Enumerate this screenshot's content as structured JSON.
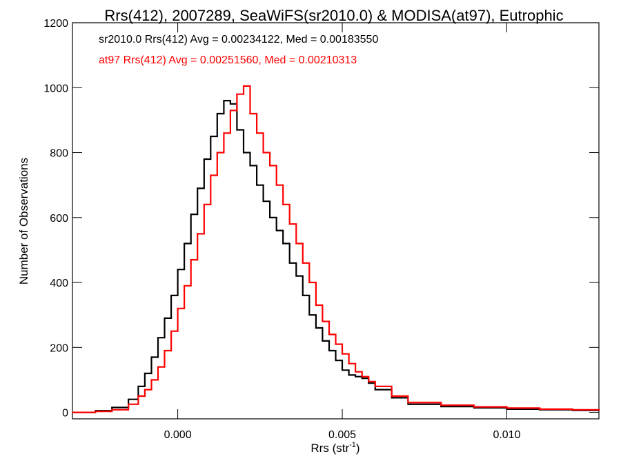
{
  "chart_data": {
    "type": "line",
    "title": "Rrs(412), 2007289, SeaWiFS(sr2010.0) & MODISA(at97), Eutrophic",
    "xlabel_main": "Rrs (str",
    "xlabel_sup": "-1",
    "xlabel_close": ")",
    "ylabel": "Number of Observations",
    "xlim": [
      -0.0032,
      0.0128
    ],
    "ylim": [
      -20,
      1200
    ],
    "x_ticks": [
      0.0,
      0.005,
      0.01
    ],
    "x_tick_labels": [
      "0.000",
      "0.005",
      "0.010"
    ],
    "y_ticks": [
      0,
      200,
      400,
      600,
      800,
      1000,
      1200
    ],
    "y_tick_labels": [
      "0",
      "200",
      "400",
      "600",
      "800",
      "1000",
      "1200"
    ],
    "grid": false,
    "annotations": [
      {
        "text": "sr2010.0 Rrs(412) Avg = 0.00234122, Med = 0.00183550",
        "color": "#000000"
      },
      {
        "text": "at97 Rrs(412) Avg = 0.00251560, Med = 0.00210313",
        "color": "#ff0000"
      }
    ],
    "series": [
      {
        "color": "#000000",
        "step": "histogram",
        "x": [
          -0.0032,
          -0.0025,
          -0.002,
          -0.0015,
          -0.0012,
          -0.001,
          -0.0008,
          -0.0006,
          -0.0004,
          -0.0002,
          0.0,
          0.0002,
          0.0004,
          0.0006,
          0.0008,
          0.001,
          0.0012,
          0.0014,
          0.0016,
          0.0018,
          0.002,
          0.0022,
          0.0024,
          0.0026,
          0.0028,
          0.003,
          0.0032,
          0.0034,
          0.0036,
          0.0038,
          0.004,
          0.0042,
          0.0044,
          0.0046,
          0.0048,
          0.005,
          0.0052,
          0.0054,
          0.0056,
          0.0058,
          0.006,
          0.0065,
          0.007,
          0.008,
          0.009,
          0.01,
          0.011,
          0.012,
          0.0128
        ],
        "y": [
          0,
          5,
          15,
          40,
          80,
          120,
          170,
          230,
          290,
          360,
          440,
          520,
          610,
          690,
          780,
          850,
          920,
          960,
          950,
          870,
          800,
          760,
          700,
          650,
          600,
          560,
          520,
          460,
          420,
          360,
          300,
          260,
          220,
          190,
          160,
          130,
          115,
          110,
          105,
          90,
          70,
          45,
          25,
          18,
          14,
          10,
          8,
          6,
          4
        ]
      },
      {
        "color": "#ff0000",
        "step": "histogram",
        "x": [
          -0.0032,
          -0.0025,
          -0.002,
          -0.0015,
          -0.0012,
          -0.001,
          -0.0008,
          -0.0006,
          -0.0004,
          -0.0002,
          0.0,
          0.0002,
          0.0004,
          0.0006,
          0.0008,
          0.001,
          0.0012,
          0.0014,
          0.0016,
          0.0018,
          0.002,
          0.0022,
          0.0024,
          0.0026,
          0.0028,
          0.003,
          0.0032,
          0.0034,
          0.0036,
          0.0038,
          0.004,
          0.0042,
          0.0044,
          0.0046,
          0.0048,
          0.005,
          0.0052,
          0.0054,
          0.0056,
          0.0058,
          0.006,
          0.0065,
          0.007,
          0.008,
          0.009,
          0.01,
          0.011,
          0.012,
          0.0128
        ],
        "y": [
          0,
          3,
          8,
          25,
          50,
          70,
          100,
          140,
          190,
          250,
          320,
          390,
          470,
          550,
          640,
          730,
          800,
          860,
          930,
          980,
          1005,
          920,
          860,
          800,
          760,
          700,
          640,
          580,
          520,
          460,
          400,
          330,
          280,
          240,
          210,
          180,
          150,
          125,
          110,
          95,
          80,
          50,
          30,
          22,
          17,
          13,
          10,
          8,
          5
        ]
      }
    ]
  }
}
